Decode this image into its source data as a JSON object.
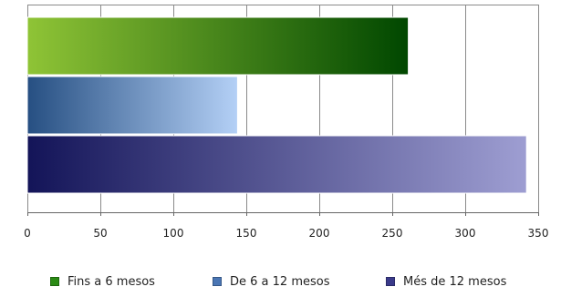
{
  "chart_data": {
    "type": "bar",
    "orientation": "horizontal",
    "categories": [
      "Fins a 6 mesos",
      "De 6 a 12 mesos",
      "Més de 12 mesos"
    ],
    "values": [
      261,
      144,
      342
    ],
    "xlim": [
      0,
      350
    ],
    "xticks": [
      0,
      50,
      100,
      150,
      200,
      250,
      300,
      350
    ],
    "grid": true,
    "legend_placement": "bottom",
    "series": [
      {
        "name": "Fins a 6 mesos",
        "value": 261,
        "color_start": "#8fc436",
        "color_end": "#004700"
      },
      {
        "name": "De 6 a 12 mesos",
        "value": 144,
        "color_start": "#264f82",
        "color_end": "#b4d0f6"
      },
      {
        "name": "Més de 12 mesos",
        "value": 342,
        "color_start": "#131458",
        "color_end": "#9e9ed2"
      }
    ]
  },
  "legend": {
    "items": [
      {
        "label": "Fins a 6 mesos",
        "swatch_color": "#2a8a14"
      },
      {
        "label": "De 6 a 12 mesos",
        "swatch_color": "#4a76b4"
      },
      {
        "label": "Més de 12 mesos",
        "swatch_color": "#3a3a8a"
      }
    ]
  }
}
